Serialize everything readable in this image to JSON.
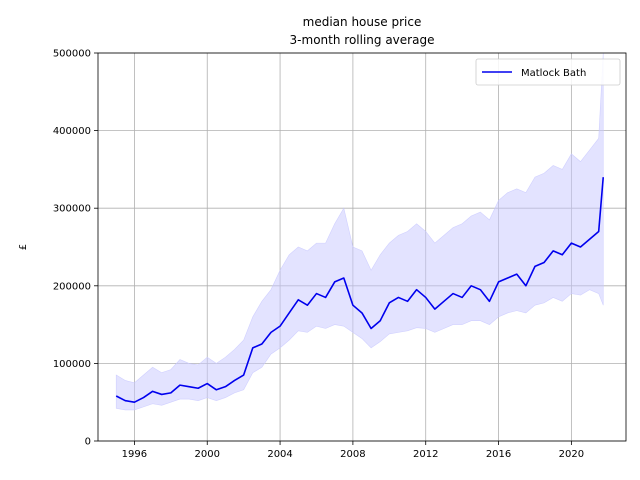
{
  "chart_data": {
    "type": "line",
    "title_line1": "median house price",
    "title_line2": "3-month rolling average",
    "xlabel": "",
    "ylabel": "£",
    "xlim": [
      1994.0,
      2023.0
    ],
    "ylim": [
      0,
      500000
    ],
    "x_ticks": [
      1996,
      2000,
      2004,
      2008,
      2012,
      2016,
      2020
    ],
    "y_ticks": [
      0,
      100000,
      200000,
      300000,
      400000,
      500000
    ],
    "grid": true,
    "legend_position": "top-right",
    "colors": {
      "line": "#0000ee",
      "band": "#c8c8ff"
    },
    "series": [
      {
        "name": "Matlock Bath",
        "x": [
          1995.0,
          1995.5,
          1996.0,
          1996.5,
          1997.0,
          1997.5,
          1998.0,
          1998.5,
          1999.0,
          1999.5,
          2000.0,
          2000.5,
          2001.0,
          2001.5,
          2002.0,
          2002.5,
          2003.0,
          2003.5,
          2004.0,
          2004.5,
          2005.0,
          2005.5,
          2006.0,
          2006.5,
          2007.0,
          2007.5,
          2008.0,
          2008.5,
          2009.0,
          2009.5,
          2010.0,
          2010.5,
          2011.0,
          2011.5,
          2012.0,
          2012.5,
          2013.0,
          2013.5,
          2014.0,
          2014.5,
          2015.0,
          2015.5,
          2016.0,
          2016.5,
          2017.0,
          2017.5,
          2018.0,
          2018.5,
          2019.0,
          2019.5,
          2020.0,
          2020.5,
          2021.0,
          2021.5,
          2021.75
        ],
        "values": [
          58000,
          52000,
          50000,
          56000,
          64000,
          60000,
          62000,
          72000,
          70000,
          68000,
          74000,
          66000,
          70000,
          78000,
          85000,
          120000,
          125000,
          140000,
          148000,
          165000,
          182000,
          175000,
          190000,
          185000,
          205000,
          210000,
          175000,
          165000,
          145000,
          155000,
          178000,
          185000,
          180000,
          195000,
          185000,
          170000,
          180000,
          190000,
          185000,
          200000,
          195000,
          180000,
          205000,
          210000,
          215000,
          200000,
          225000,
          230000,
          245000,
          240000,
          255000,
          250000,
          260000,
          270000,
          340000
        ],
        "band_low": [
          42000,
          40000,
          40000,
          44000,
          48000,
          46000,
          50000,
          54000,
          54000,
          52000,
          56000,
          52000,
          56000,
          62000,
          66000,
          88000,
          95000,
          112000,
          120000,
          130000,
          142000,
          140000,
          148000,
          145000,
          150000,
          148000,
          140000,
          132000,
          120000,
          128000,
          138000,
          140000,
          142000,
          146000,
          145000,
          140000,
          145000,
          150000,
          150000,
          155000,
          155000,
          150000,
          160000,
          165000,
          168000,
          165000,
          175000,
          178000,
          185000,
          180000,
          190000,
          188000,
          195000,
          190000,
          175000
        ],
        "band_high": [
          85000,
          78000,
          75000,
          85000,
          95000,
          88000,
          92000,
          105000,
          100000,
          98000,
          108000,
          100000,
          108000,
          118000,
          130000,
          160000,
          180000,
          195000,
          220000,
          240000,
          250000,
          245000,
          255000,
          255000,
          280000,
          300000,
          250000,
          245000,
          220000,
          240000,
          255000,
          265000,
          270000,
          280000,
          270000,
          255000,
          265000,
          275000,
          280000,
          290000,
          295000,
          285000,
          310000,
          320000,
          325000,
          320000,
          340000,
          345000,
          355000,
          350000,
          370000,
          360000,
          375000,
          390000,
          500000
        ]
      }
    ]
  }
}
